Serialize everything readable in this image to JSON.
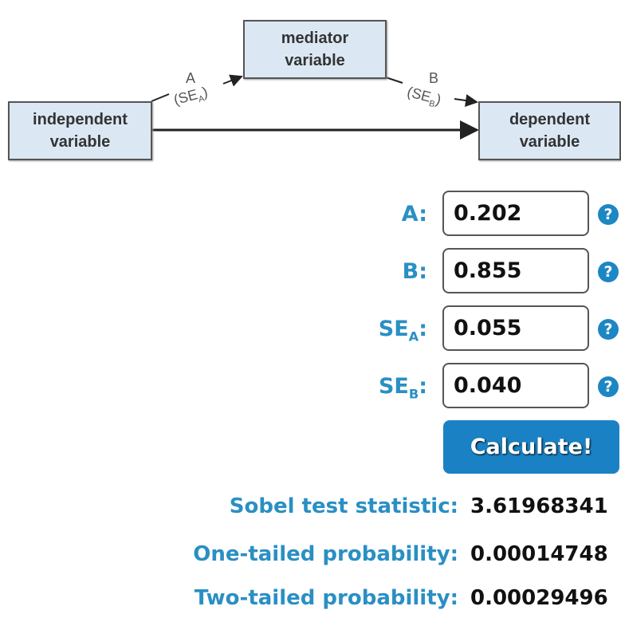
{
  "diagram": {
    "mediator": [
      "mediator",
      "variable"
    ],
    "independent": [
      "independent",
      "variable"
    ],
    "dependent": [
      "dependent",
      "variable"
    ],
    "path_a": "A",
    "path_a_se": "(SE",
    "path_a_se_sub": "A",
    "path_b": "B",
    "path_b_se": "(SE",
    "path_b_se_sub": "B"
  },
  "form": {
    "a": {
      "label": "A:",
      "value": "0.202"
    },
    "b": {
      "label": "B:",
      "value": "0.855"
    },
    "sea": {
      "label": "SE",
      "sub": "A",
      "colon": ":",
      "value": "0.055"
    },
    "seb": {
      "label": "SE",
      "sub": "B",
      "colon": ":",
      "value": "0.040"
    },
    "help_glyph": "?",
    "calculate": "Calculate!"
  },
  "results": [
    {
      "label": "Sobel test statistic:",
      "value": "3.61968341"
    },
    {
      "label": "One-tailed probability:",
      "value": "0.00014748"
    },
    {
      "label": "Two-tailed probability:",
      "value": "0.00029496"
    }
  ],
  "colors": {
    "accent": "#2a8fc4",
    "button": "#1a82c4",
    "box": "#dbe8f4"
  }
}
